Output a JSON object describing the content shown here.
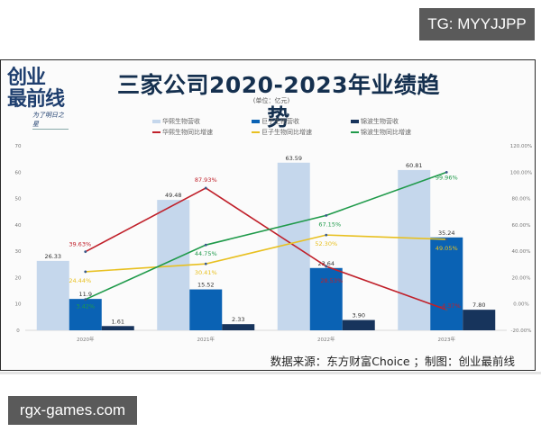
{
  "watermarks": {
    "top_right": "TG: MYYJJPP",
    "bottom_left": "rgx-games.com"
  },
  "logo": {
    "line1": "创业",
    "line2": "最前线",
    "tagline": "为了明日之星"
  },
  "header": {
    "title": "三家公司2020-2023年业绩趋势",
    "unit": "(单位：亿元)"
  },
  "legend": [
    {
      "label": "华熙生物营收",
      "type": "bar",
      "color": "#c5d7ec"
    },
    {
      "label": "巨子生物营收",
      "type": "bar",
      "color": "#0a62b4"
    },
    {
      "label": "锦波生物营收",
      "type": "bar",
      "color": "#17345c"
    },
    {
      "label": "华熙生物同比增速",
      "type": "line",
      "color": "#c0202a"
    },
    {
      "label": "巨子生物同比增速",
      "type": "line",
      "color": "#f0c020"
    },
    {
      "label": "锦波生物同比增速",
      "type": "line",
      "color": "#1f9a4a"
    }
  ],
  "footer": {
    "source": "数据来源：东方财富Choice ；制图：创业最前线"
  },
  "chart_data": {
    "type": "bar",
    "title": "三家公司2020-2023年业绩趋势",
    "subtitle": "(单位：亿元)",
    "categories": [
      "2020年",
      "2021年",
      "2022年",
      "2023年"
    ],
    "series": [
      {
        "name": "华熙生物营收",
        "kind": "bar",
        "axis": "left",
        "color": "#c5d7ec",
        "values": [
          26.33,
          49.48,
          63.59,
          60.81
        ],
        "labels": [
          "26.33",
          "49.48",
          "63.59",
          "60.81"
        ]
      },
      {
        "name": "巨子生物营收",
        "kind": "bar",
        "axis": "left",
        "color": "#0a62b4",
        "values": [
          11.9,
          15.52,
          23.64,
          35.24
        ],
        "labels": [
          "11.9",
          "15.52",
          "23.64",
          "35.24"
        ]
      },
      {
        "name": "锦波生物营收",
        "kind": "bar",
        "axis": "left",
        "color": "#17345c",
        "values": [
          1.61,
          2.33,
          3.9,
          7.8
        ],
        "labels": [
          "1.61",
          "2.33",
          "3.90",
          "7.80"
        ]
      },
      {
        "name": "华熙生物同比增速",
        "kind": "line",
        "axis": "right",
        "color": "#c0202a",
        "values": [
          39.63,
          87.93,
          28.53,
          -4.37
        ],
        "labels": [
          "39.63%",
          "87.93%",
          "28.53%",
          "-4.37%"
        ]
      },
      {
        "name": "巨子生物同比增速",
        "kind": "line",
        "axis": "right",
        "color": "#e8c020",
        "values": [
          24.44,
          30.41,
          52.3,
          49.05
        ],
        "labels": [
          "24.44%",
          "30.41%",
          "52.30%",
          "49.05%"
        ]
      },
      {
        "name": "锦波生物同比增速",
        "kind": "line",
        "axis": "right",
        "color": "#1f9a4a",
        "values": [
          3.42,
          44.75,
          67.15,
          99.96
        ],
        "labels": [
          "3.42%",
          "44.75%",
          "67.15%",
          "99.96%"
        ]
      }
    ],
    "y_left": {
      "ylim": [
        0,
        70
      ],
      "ticks": [
        "0",
        "10",
        "20",
        "30",
        "40",
        "50",
        "60",
        "70"
      ]
    },
    "y_right": {
      "ylim": [
        -20,
        120
      ],
      "ticks": [
        "-20.00%",
        "0.00%",
        "20.00%",
        "40.00%",
        "60.00%",
        "80.00%",
        "100.00%",
        "120.00%"
      ]
    },
    "xlabel": "",
    "ylabel": "",
    "grid": false,
    "legend_position": "top"
  }
}
